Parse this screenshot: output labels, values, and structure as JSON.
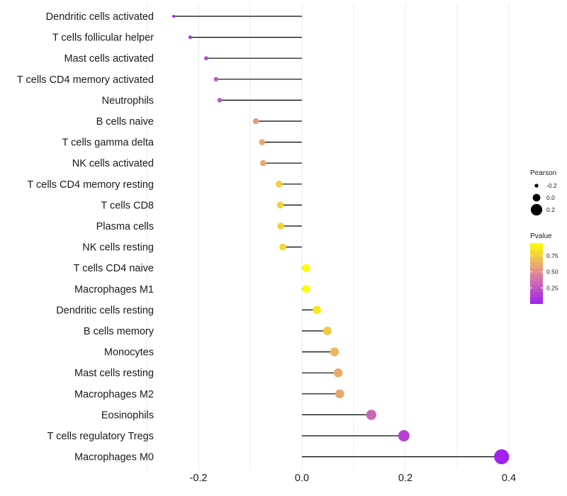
{
  "chart_data": {
    "type": "lollipop",
    "title": "",
    "xlabel": "",
    "ylabel": "",
    "xlim": [
      -0.3,
      0.41
    ],
    "x_ticks": [
      -0.2,
      0.0,
      0.2,
      0.4
    ],
    "x_tick_labels": [
      "-0.2",
      "0.0",
      "0.2",
      "0.4"
    ],
    "x_minor_gridlines": [
      -0.3,
      -0.1,
      0.1,
      0.3
    ],
    "grid": true,
    "categories": [
      "Dendritic cells activated",
      "T cells follicular helper",
      "Mast cells activated",
      "T cells CD4 memory activated",
      "Neutrophils",
      "B cells naive",
      "T cells gamma delta",
      "NK cells activated",
      "T cells CD4 memory resting",
      "T cells CD8",
      "Plasma cells",
      "NK cells resting",
      "T cells CD4 naive",
      "Macrophages M1",
      "Dendritic cells resting",
      "B cells memory",
      "Monocytes",
      "Mast cells resting",
      "Macrophages M2",
      "Eosinophils",
      "T cells regulatory  Tregs ",
      "Macrophages M0"
    ],
    "pearson": [
      -0.248,
      -0.216,
      -0.185,
      -0.166,
      -0.159,
      -0.089,
      -0.077,
      -0.075,
      -0.044,
      -0.042,
      -0.041,
      -0.037,
      0.008,
      0.008,
      0.029,
      0.049,
      0.063,
      0.07,
      0.073,
      0.134,
      0.197,
      0.386
    ],
    "pvalue": [
      0.01,
      0.08,
      0.18,
      0.22,
      0.24,
      0.55,
      0.6,
      0.61,
      0.76,
      0.77,
      0.77,
      0.79,
      0.96,
      0.96,
      0.86,
      0.74,
      0.66,
      0.62,
      0.6,
      0.32,
      0.15,
      0.01
    ],
    "legend": {
      "size": {
        "title": "Pearson",
        "entries": [
          {
            "label": "-0.2",
            "value": -0.2
          },
          {
            "label": "0.0",
            "value": 0.0
          },
          {
            "label": "0.2",
            "value": 0.2
          }
        ]
      },
      "color": {
        "title": "Pvalue",
        "ticks": [
          0.25,
          0.5,
          0.75
        ],
        "tick_labels": [
          "0.25",
          "0.50",
          "0.75"
        ],
        "range": [
          0.0,
          0.95
        ],
        "low_color": "#a020f0",
        "mid_color": "#e08898",
        "high_color": "#ffff00"
      },
      "placement": "right"
    }
  }
}
